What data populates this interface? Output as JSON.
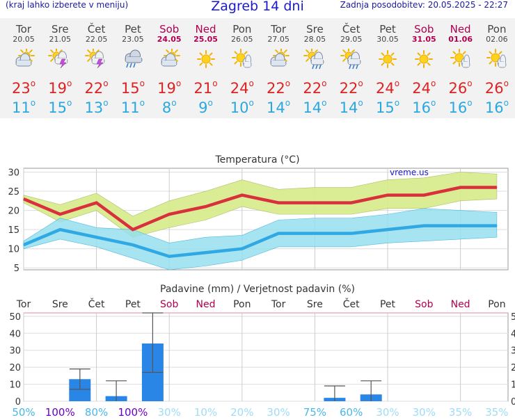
{
  "header": {
    "left_note": "(kraj lahko izberete v meniju)",
    "title": "Zagreb 14 dni",
    "updated": "Zadnja posodobitev: 20.05.2025 - 22:27"
  },
  "days": [
    {
      "name": "Tor",
      "date": "20.05",
      "icon": "sun-cloud-icon",
      "tmax": "23",
      "tmin": "11",
      "weekend": false
    },
    {
      "name": "Sre",
      "date": "21.05",
      "icon": "sun-storm-icon",
      "tmax": "19",
      "tmin": "15",
      "weekend": false
    },
    {
      "name": "Čet",
      "date": "22.05",
      "icon": "sun-storm-icon",
      "tmax": "22",
      "tmin": "13",
      "weekend": false
    },
    {
      "name": "Pet",
      "date": "23.05",
      "icon": "rain-cloud-icon",
      "tmax": "15",
      "tmin": "11",
      "weekend": false
    },
    {
      "name": "Sob",
      "date": "24.05",
      "icon": "sun-cloud-icon",
      "tmax": "19",
      "tmin": "8",
      "weekend": true
    },
    {
      "name": "Ned",
      "date": "25.05",
      "icon": "sun-icon",
      "tmax": "21",
      "tmin": "9",
      "weekend": true
    },
    {
      "name": "Pon",
      "date": "26.05",
      "icon": "sun-small-cloud-icon",
      "tmax": "24",
      "tmin": "10",
      "weekend": false
    },
    {
      "name": "Tor",
      "date": "27.05",
      "icon": "sun-cloud-icon",
      "tmax": "22",
      "tmin": "14",
      "weekend": false
    },
    {
      "name": "Sre",
      "date": "28.05",
      "icon": "sun-rain-icon",
      "tmax": "22",
      "tmin": "14",
      "weekend": false
    },
    {
      "name": "Čet",
      "date": "29.05",
      "icon": "sun-rain-icon",
      "tmax": "22",
      "tmin": "14",
      "weekend": false
    },
    {
      "name": "Pet",
      "date": "30.05",
      "icon": "sun-icon",
      "tmax": "24",
      "tmin": "15",
      "weekend": false
    },
    {
      "name": "Sob",
      "date": "31.05",
      "icon": "sun-icon",
      "tmax": "24",
      "tmin": "16",
      "weekend": true
    },
    {
      "name": "Ned",
      "date": "01.06",
      "icon": "sun-small-cloud-icon",
      "tmax": "26",
      "tmin": "16",
      "weekend": true
    },
    {
      "name": "Pon",
      "date": "02.06",
      "icon": "sun-small-cloud-icon",
      "tmax": "26",
      "tmin": "16",
      "weekend": false
    }
  ],
  "degree_symbol": "o",
  "colors": {
    "max": "#dd2222",
    "min": "#29a8e0",
    "weekend": "#b00050",
    "max_band": "#d6ec8a",
    "min_band": "#96e0ee",
    "bar": "#2a86e6",
    "prob_low": "#9fdcf5",
    "prob_mid": "#48b8e8",
    "prob_high": "#6a00c8"
  },
  "chart_data": [
    {
      "type": "line",
      "title": "Temperatura (°C)",
      "watermark": "vreme.us",
      "categories": [
        "Tor",
        "Sre",
        "Čet",
        "Pet",
        "Sob",
        "Ned",
        "Pon",
        "Tor",
        "Sre",
        "Čet",
        "Pet",
        "Sob",
        "Ned",
        "Pon"
      ],
      "ylim": [
        4.5,
        31
      ],
      "yticks": [
        5,
        10,
        15,
        20,
        25,
        30
      ],
      "grid": true,
      "series": [
        {
          "name": "max",
          "values": [
            23,
            19,
            22,
            15,
            19,
            21,
            24,
            22,
            22,
            22,
            24,
            24,
            26,
            26
          ],
          "band_high": [
            24,
            21.5,
            24.5,
            18.5,
            22.5,
            25,
            28,
            25.5,
            26,
            26,
            28,
            28.5,
            30,
            29.5
          ],
          "band_low": [
            22,
            17,
            20,
            13,
            15.5,
            17.5,
            21,
            19,
            19,
            19,
            20.5,
            20.5,
            22.5,
            23
          ]
        },
        {
          "name": "min",
          "values": [
            11,
            15,
            13,
            11,
            8,
            9,
            10,
            14,
            14,
            14,
            15,
            16,
            16,
            16
          ],
          "band_high": [
            12,
            18,
            15.5,
            15,
            11.5,
            13,
            13.5,
            17.5,
            18,
            18,
            19,
            20.5,
            20,
            19.5
          ],
          "band_low": [
            10,
            12.5,
            10.5,
            7.5,
            4.5,
            5.5,
            7,
            10.5,
            10.5,
            10.5,
            11.5,
            12,
            12.5,
            13
          ]
        }
      ]
    },
    {
      "type": "bar",
      "title": "Padavine (mm) / Verjetnost padavin (%)",
      "categories": [
        "Tor",
        "Sre",
        "Čet",
        "Pet",
        "Sob",
        "Ned",
        "Pon",
        "Tor",
        "Sre",
        "Čet",
        "Pet",
        "Sob",
        "Ned",
        "Pon"
      ],
      "ylim": [
        0,
        52
      ],
      "yticks": [
        0,
        10,
        20,
        30,
        40,
        50
      ],
      "values": [
        0,
        13,
        3,
        34,
        0,
        0,
        0,
        0,
        2,
        4,
        0,
        0,
        0,
        0
      ],
      "error_high": [
        0,
        19,
        12,
        52,
        0,
        0,
        0,
        0,
        9,
        12,
        0,
        0,
        0,
        0
      ],
      "error_low": [
        0,
        7,
        0,
        17,
        0,
        0,
        0,
        0,
        0,
        0,
        0,
        0,
        0,
        0
      ],
      "probability": [
        "50%",
        "100%",
        "80%",
        "100%",
        "30%",
        "10%",
        "20%",
        "30%",
        "75%",
        "60%",
        "30%",
        "30%",
        "35%",
        "35%"
      ],
      "probability_values": [
        50,
        100,
        80,
        100,
        30,
        10,
        20,
        30,
        75,
        60,
        30,
        30,
        35,
        35
      ]
    }
  ]
}
